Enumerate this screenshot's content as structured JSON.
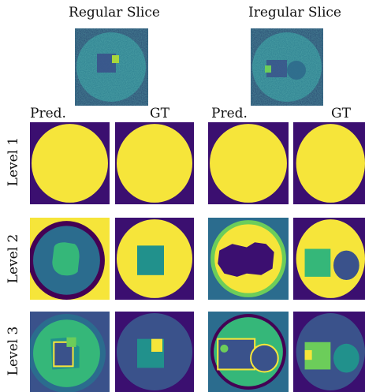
{
  "columns": [
    {
      "title": "Regular Slice",
      "pred_label": "Pred.",
      "gt_label": "GT"
    },
    {
      "title": "Iregular Slice",
      "pred_label": "Pred.",
      "gt_label": "GT"
    }
  ],
  "rows": [
    {
      "label": "Level 1"
    },
    {
      "label": "Level 2"
    },
    {
      "label": "Level 3"
    }
  ],
  "colors": {
    "background_dark": "#3b0f70",
    "yellow": "#f6e53a",
    "teal_dark": "#2b6c8e",
    "blue_mid": "#3a528b",
    "green": "#35b779",
    "green_light": "#6ccd5a",
    "teal": "#21918c",
    "purple_deep": "#440154"
  }
}
